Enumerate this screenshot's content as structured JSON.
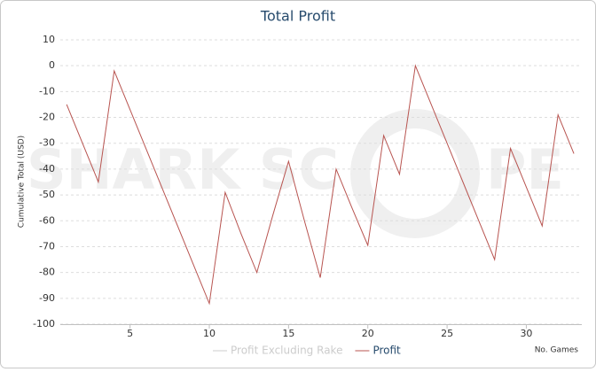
{
  "chart_data": {
    "type": "line",
    "title": "Total Profit",
    "y_label": "Cumulative Total (USD)",
    "x_label": "No. Games",
    "watermark": [
      "SHARK SC",
      "PE"
    ],
    "x": [
      1,
      2,
      3,
      4,
      5,
      6,
      7,
      8,
      9,
      10,
      11,
      12,
      13,
      14,
      15,
      16,
      17,
      18,
      19,
      20,
      21,
      22,
      23,
      24,
      25,
      26,
      27,
      28,
      29,
      30,
      31,
      32,
      33
    ],
    "series": [
      {
        "name": "Profit Excluding Rake",
        "color": "#cccccc",
        "visible": false
      },
      {
        "name": "Profit",
        "color": "#b85450",
        "visible": true,
        "values": [
          -15,
          -30,
          -45,
          -2,
          -17,
          -32,
          -47,
          -62,
          -77,
          -92,
          -49,
          -65,
          -80,
          -58,
          -37,
          -60,
          -82,
          -40,
          -55,
          -69.5,
          -27,
          -42,
          0,
          -15,
          -30,
          -45,
          -60,
          -75,
          -32,
          -47,
          -62,
          -19,
          -34
        ]
      }
    ],
    "xlim": [
      0.6,
      33.5
    ],
    "xticks": [
      5,
      10,
      15,
      20,
      25,
      30
    ],
    "ylim": [
      -100,
      10
    ],
    "yticks": [
      -100,
      -90,
      -80,
      -70,
      -60,
      -50,
      -40,
      -30,
      -20,
      -10,
      0,
      10
    ],
    "grid": true
  }
}
